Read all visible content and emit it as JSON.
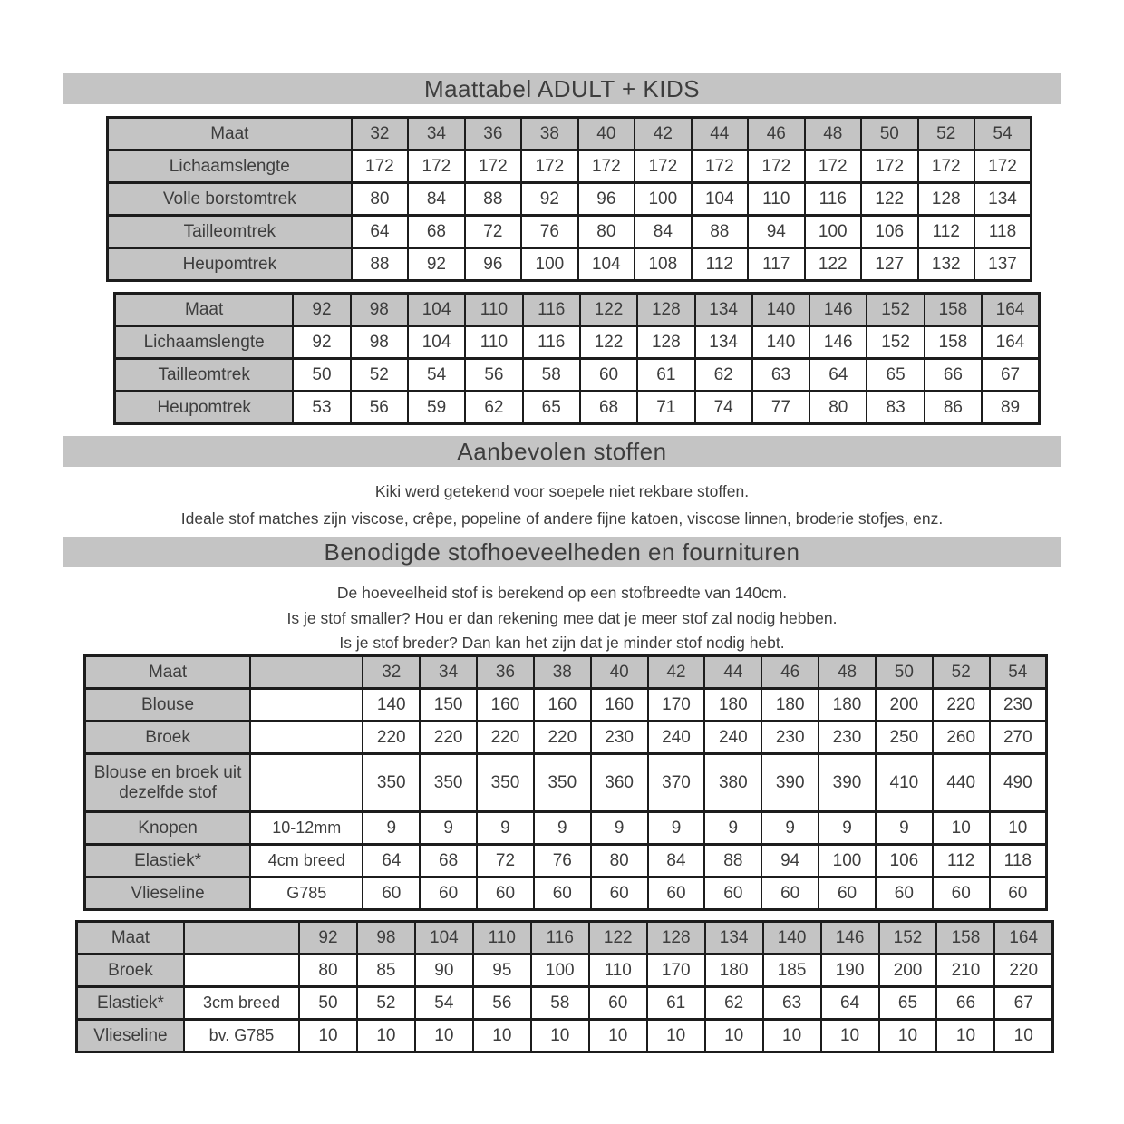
{
  "page_title": "Maattabel ADULT + KIDS",
  "colors": {
    "header_gray": "#c4c4c4",
    "border": "#1c1c1c",
    "text": "#3d3d3d"
  },
  "recommended_fabrics": {
    "title": "Aanbevolen stoffen",
    "lines": [
      "Kiki werd getekend voor soepele niet rekbare stoffen.",
      "Ideale stof matches zijn viscose, crêpe, popeline of andere fijne katoen, viscose linnen, broderie stofjes, enz."
    ]
  },
  "fabric_requirements": {
    "title": "Benodigde stofhoeveelheden en fournituren",
    "lines": [
      "De hoeveelheid stof is berekend op een stofbreedte van 140cm.",
      "Is je stof smaller? Hou er dan rekening mee dat je meer stof zal nodig hebben.",
      "Is je stof breder? Dan kan het zijn dat je minder stof nodig hebt."
    ]
  },
  "tables": {
    "adult_sizes": {
      "has_note_col": false,
      "col_widths": [
        "26.4%",
        "6.13%",
        "6.13%",
        "6.13%",
        "6.13%",
        "6.13%",
        "6.13%",
        "6.13%",
        "6.13%",
        "6.13%",
        "6.13%",
        "6.13%",
        "6.13%"
      ],
      "rows": [
        {
          "label": "Maat",
          "header": true,
          "values": [
            "32",
            "34",
            "36",
            "38",
            "40",
            "42",
            "44",
            "46",
            "48",
            "50",
            "52",
            "54"
          ]
        },
        {
          "label": "Lichaamslengte",
          "values": [
            "172",
            "172",
            "172",
            "172",
            "172",
            "172",
            "172",
            "172",
            "172",
            "172",
            "172",
            "172"
          ]
        },
        {
          "label": "Volle borstomtrek",
          "values": [
            "80",
            "84",
            "88",
            "92",
            "96",
            "100",
            "104",
            "110",
            "116",
            "122",
            "128",
            "134"
          ]
        },
        {
          "label": "Tailleomtrek",
          "values": [
            "64",
            "68",
            "72",
            "76",
            "80",
            "84",
            "88",
            "94",
            "100",
            "106",
            "112",
            "118"
          ]
        },
        {
          "label": "Heupomtrek",
          "values": [
            "88",
            "92",
            "96",
            "100",
            "104",
            "108",
            "112",
            "117",
            "122",
            "127",
            "132",
            "137"
          ]
        }
      ]
    },
    "kids_sizes": {
      "has_note_col": false,
      "col_widths": [
        "19.3%",
        "6.21%",
        "6.21%",
        "6.21%",
        "6.21%",
        "6.21%",
        "6.21%",
        "6.21%",
        "6.21%",
        "6.21%",
        "6.21%",
        "6.21%",
        "6.21%",
        "6.21%"
      ],
      "rows": [
        {
          "label": "Maat",
          "header": true,
          "values": [
            "92",
            "98",
            "104",
            "110",
            "116",
            "122",
            "128",
            "134",
            "140",
            "146",
            "152",
            "158",
            "164"
          ]
        },
        {
          "label": "Lichaamslengte",
          "values": [
            "92",
            "98",
            "104",
            "110",
            "116",
            "122",
            "128",
            "134",
            "140",
            "146",
            "152",
            "158",
            "164"
          ]
        },
        {
          "label": "Tailleomtrek",
          "values": [
            "50",
            "52",
            "54",
            "56",
            "58",
            "60",
            "61",
            "62",
            "63",
            "64",
            "65",
            "66",
            "67"
          ]
        },
        {
          "label": "Heupomtrek",
          "values": [
            "53",
            "56",
            "59",
            "62",
            "65",
            "68",
            "71",
            "74",
            "77",
            "80",
            "83",
            "86",
            "89"
          ]
        }
      ]
    },
    "adult_fabric": {
      "has_note_col": true,
      "col_widths": [
        "17.2%",
        "11.7%",
        "5.92%",
        "5.92%",
        "5.92%",
        "5.92%",
        "5.92%",
        "5.92%",
        "5.92%",
        "5.92%",
        "5.92%",
        "5.92%",
        "5.92%",
        "5.92%"
      ],
      "rows": [
        {
          "label": "Maat",
          "header": true,
          "note": "",
          "values": [
            "32",
            "34",
            "36",
            "38",
            "40",
            "42",
            "44",
            "46",
            "48",
            "50",
            "52",
            "54"
          ]
        },
        {
          "label": "Blouse",
          "note": "",
          "values": [
            "140",
            "150",
            "160",
            "160",
            "160",
            "170",
            "180",
            "180",
            "180",
            "200",
            "220",
            "230"
          ]
        },
        {
          "label": "Broek",
          "note": "",
          "values": [
            "220",
            "220",
            "220",
            "220",
            "230",
            "240",
            "240",
            "230",
            "230",
            "250",
            "260",
            "270"
          ]
        },
        {
          "label": "Blouse en broek uit dezelfde stof",
          "tall": true,
          "note": "",
          "values": [
            "350",
            "350",
            "350",
            "350",
            "360",
            "370",
            "380",
            "390",
            "390",
            "410",
            "440",
            "490"
          ]
        },
        {
          "label": "Knopen",
          "note": "10-12mm",
          "values": [
            "9",
            "9",
            "9",
            "9",
            "9",
            "9",
            "9",
            "9",
            "9",
            "9",
            "10",
            "10"
          ]
        },
        {
          "label": "Elastiek*",
          "note": "4cm breed",
          "values": [
            "64",
            "68",
            "72",
            "76",
            "80",
            "84",
            "88",
            "94",
            "100",
            "106",
            "112",
            "118"
          ]
        },
        {
          "label": "Vlieseline",
          "note": "G785",
          "values": [
            "60",
            "60",
            "60",
            "60",
            "60",
            "60",
            "60",
            "60",
            "60",
            "60",
            "60",
            "60"
          ]
        }
      ]
    },
    "kids_fabric": {
      "has_note_col": true,
      "col_widths": [
        "11.0%",
        "11.8%",
        "5.94%",
        "5.94%",
        "5.94%",
        "5.94%",
        "5.94%",
        "5.94%",
        "5.94%",
        "5.94%",
        "5.94%",
        "5.94%",
        "5.94%",
        "5.94%",
        "5.94%"
      ],
      "rows": [
        {
          "label": "Maat",
          "header": true,
          "note": "",
          "values": [
            "92",
            "98",
            "104",
            "110",
            "116",
            "122",
            "128",
            "134",
            "140",
            "146",
            "152",
            "158",
            "164"
          ]
        },
        {
          "label": "Broek",
          "note": "",
          "values": [
            "80",
            "85",
            "90",
            "95",
            "100",
            "110",
            "170",
            "180",
            "185",
            "190",
            "200",
            "210",
            "220"
          ]
        },
        {
          "label": "Elastiek*",
          "note": "3cm breed",
          "values": [
            "50",
            "52",
            "54",
            "56",
            "58",
            "60",
            "61",
            "62",
            "63",
            "64",
            "65",
            "66",
            "67"
          ]
        },
        {
          "label": "Vlieseline",
          "note": "bv. G785",
          "values": [
            "10",
            "10",
            "10",
            "10",
            "10",
            "10",
            "10",
            "10",
            "10",
            "10",
            "10",
            "10",
            "10"
          ]
        }
      ]
    }
  }
}
